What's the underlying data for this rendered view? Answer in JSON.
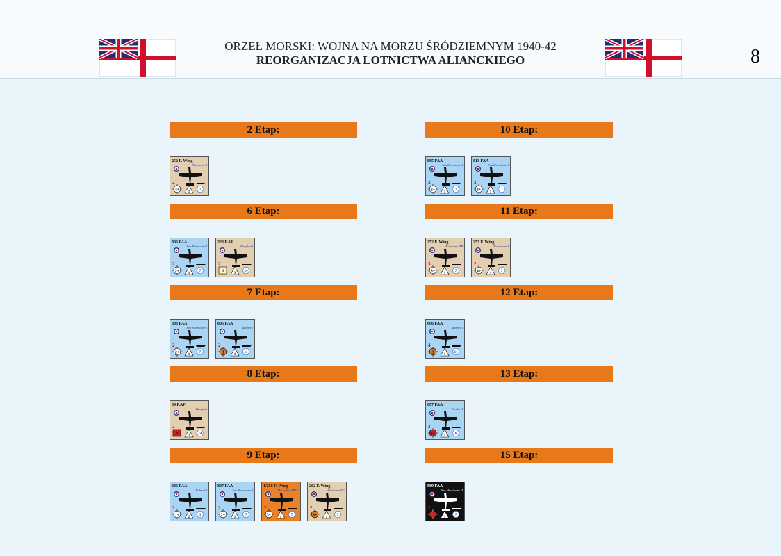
{
  "header": {
    "title_line1": "ORZEŁ MORSKI: WOJNA NA MORZU ŚRÓDZIEMNYM 1940-42",
    "title_line2": "REORGANIZACJA LOTNICTWA ALIANCKIEGO",
    "page_number": "8"
  },
  "left_column": [
    {
      "heading": "2 Etap:",
      "counters": [
        {
          "unit": "252 F. Wing",
          "aircraft": "Hurricane I",
          "bg": "#e2cfb2",
          "red": "2",
          "circle": "4+",
          "triangle": "1",
          "hex": "7"
        }
      ]
    },
    {
      "heading": "6 Etap:",
      "counters": [
        {
          "unit": "806 FAA",
          "aircraft": "Sea Hurricane I",
          "bg": "#a9d4f2",
          "red": "2",
          "circle": "2+",
          "triangle": "1",
          "hex": "7"
        },
        {
          "unit": "223 RAF",
          "aircraft": "Maryland",
          "bg": "#e2cfb2",
          "red": "2",
          "circle": "1",
          "marker": "box",
          "marker_color": "#fff6c8",
          "triangle": "3",
          "hex": "24"
        }
      ]
    },
    {
      "heading": "7 Etap:",
      "counters": [
        {
          "unit": "803 FAA",
          "aircraft": "Sea Hurricane I",
          "bg": "#a9d4f2",
          "red": "2",
          "circle": "2+",
          "triangle": "1",
          "hex": "7"
        },
        {
          "unit": "805 FAA",
          "aircraft": "Martlet I",
          "bg": "#a9d4f2",
          "red": "2",
          "circle": "3",
          "marker_color": "#e07b20",
          "triangle": "1",
          "hex": "11"
        }
      ]
    },
    {
      "heading": "8 Etap:",
      "counters": [
        {
          "unit": "39 RAF",
          "aircraft": "Beaufort",
          "bg": "#e2cfb2",
          "red": "2",
          "circle": "4",
          "marker": "box",
          "marker_color": "#cc2222",
          "triangle": "2",
          "hex": "14"
        }
      ]
    },
    {
      "heading": "9 Etap:",
      "counters": [
        {
          "unit": "806 FAA",
          "aircraft": "Fulmar I",
          "bg": "#a9d4f2",
          "red": "3",
          "circle": "1+",
          "triangle": "2",
          "hex": "3"
        },
        {
          "unit": "807 FAA",
          "aircraft": "Sea Hurricane I",
          "bg": "#a9d4f2",
          "red": "2",
          "circle": "2+",
          "triangle": "1",
          "hex": "7"
        },
        {
          "unit": "1/258 F. Wing",
          "aircraft": "Hurricane IIB/C",
          "bg": "#e8822a",
          "red": "2",
          "circle": "3+",
          "triangle": "1",
          "hex": "7"
        },
        {
          "unit": "262 F. Wing",
          "aircraft": "Hurricane IIC",
          "bg": "#e2cfb2",
          "red": "2",
          "circle": "6+",
          "marker_color": "#e07b20",
          "triangle": "1",
          "hex": "7"
        }
      ]
    }
  ],
  "right_column": [
    {
      "heading": "10 Etap:",
      "counters": [
        {
          "unit": "885 FAA",
          "aircraft": "Sea Hurricane I",
          "bg": "#a9d4f2",
          "red": "2",
          "circle": "2+",
          "triangle": "1",
          "hex": "7"
        },
        {
          "unit": "813 FAA",
          "aircraft": "Sea Hurricane I",
          "bg": "#a9d4f2",
          "red": "2",
          "circle": "2+",
          "triangle": "1",
          "hex": "7"
        }
      ]
    },
    {
      "heading": "11 Etap:",
      "counters": [
        {
          "unit": "252 F. Wing",
          "aircraft": "Hurricane IIB",
          "bg": "#e2cfb2",
          "red": "3",
          "circle": "3+",
          "triangle": "1",
          "hex": "7"
        },
        {
          "unit": "253 F. Wing",
          "aircraft": "Hurricane I",
          "bg": "#e2cfb2",
          "red": "2",
          "circle": "4+",
          "triangle": "1",
          "hex": "7"
        }
      ]
    },
    {
      "heading": "12 Etap:",
      "counters": [
        {
          "unit": "806 FAA",
          "aircraft": "Martlet I",
          "bg": "#a9d4f2",
          "red": "4",
          "circle": "3",
          "marker_color": "#e07b20",
          "triangle": "1",
          "hex": "11"
        }
      ]
    },
    {
      "heading": "13 Etap:",
      "counters": [
        {
          "unit": "807 FAA",
          "aircraft": "Seafire I",
          "bg": "#a9d4f2",
          "red": "3",
          "circle": "3+",
          "marker_color": "#cc2222",
          "triangle": "1",
          "hex": "6"
        }
      ]
    },
    {
      "heading": "15 Etap:",
      "counters": [
        {
          "unit": "889 FAA",
          "aircraft": "Sea Hurricane II",
          "bg": "#111111",
          "red": "2",
          "marker_color": "#cc2222",
          "triangle": "1",
          "hex": "7"
        }
      ]
    }
  ]
}
